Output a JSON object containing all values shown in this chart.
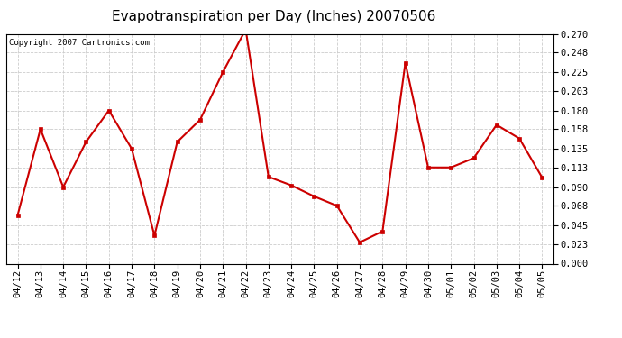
{
  "title": "Evapotranspiration per Day (Inches) 20070506",
  "copyright": "Copyright 2007 Cartronics.com",
  "dates": [
    "04/12",
    "04/13",
    "04/14",
    "04/15",
    "04/16",
    "04/17",
    "04/18",
    "04/19",
    "04/20",
    "04/21",
    "04/22",
    "04/23",
    "04/24",
    "04/25",
    "04/26",
    "04/27",
    "04/28",
    "04/29",
    "04/30",
    "05/01",
    "05/02",
    "05/03",
    "05/04",
    "05/05"
  ],
  "values": [
    0.057,
    0.158,
    0.09,
    0.143,
    0.18,
    0.135,
    0.033,
    0.143,
    0.169,
    0.225,
    0.275,
    0.102,
    0.092,
    0.079,
    0.068,
    0.025,
    0.038,
    0.236,
    0.113,
    0.113,
    0.124,
    0.163,
    0.147,
    0.101
  ],
  "line_color": "#cc0000",
  "marker": "s",
  "marker_size": 2.5,
  "ylim": [
    0.0,
    0.27
  ],
  "yticks": [
    0.0,
    0.023,
    0.045,
    0.068,
    0.09,
    0.113,
    0.135,
    0.158,
    0.18,
    0.203,
    0.225,
    0.248,
    0.27
  ],
  "background_color": "#ffffff",
  "plot_bg_color": "#ffffff",
  "grid_color": "#cccccc",
  "title_fontsize": 11,
  "copyright_fontsize": 6.5,
  "tick_fontsize": 7.5,
  "linewidth": 1.5
}
